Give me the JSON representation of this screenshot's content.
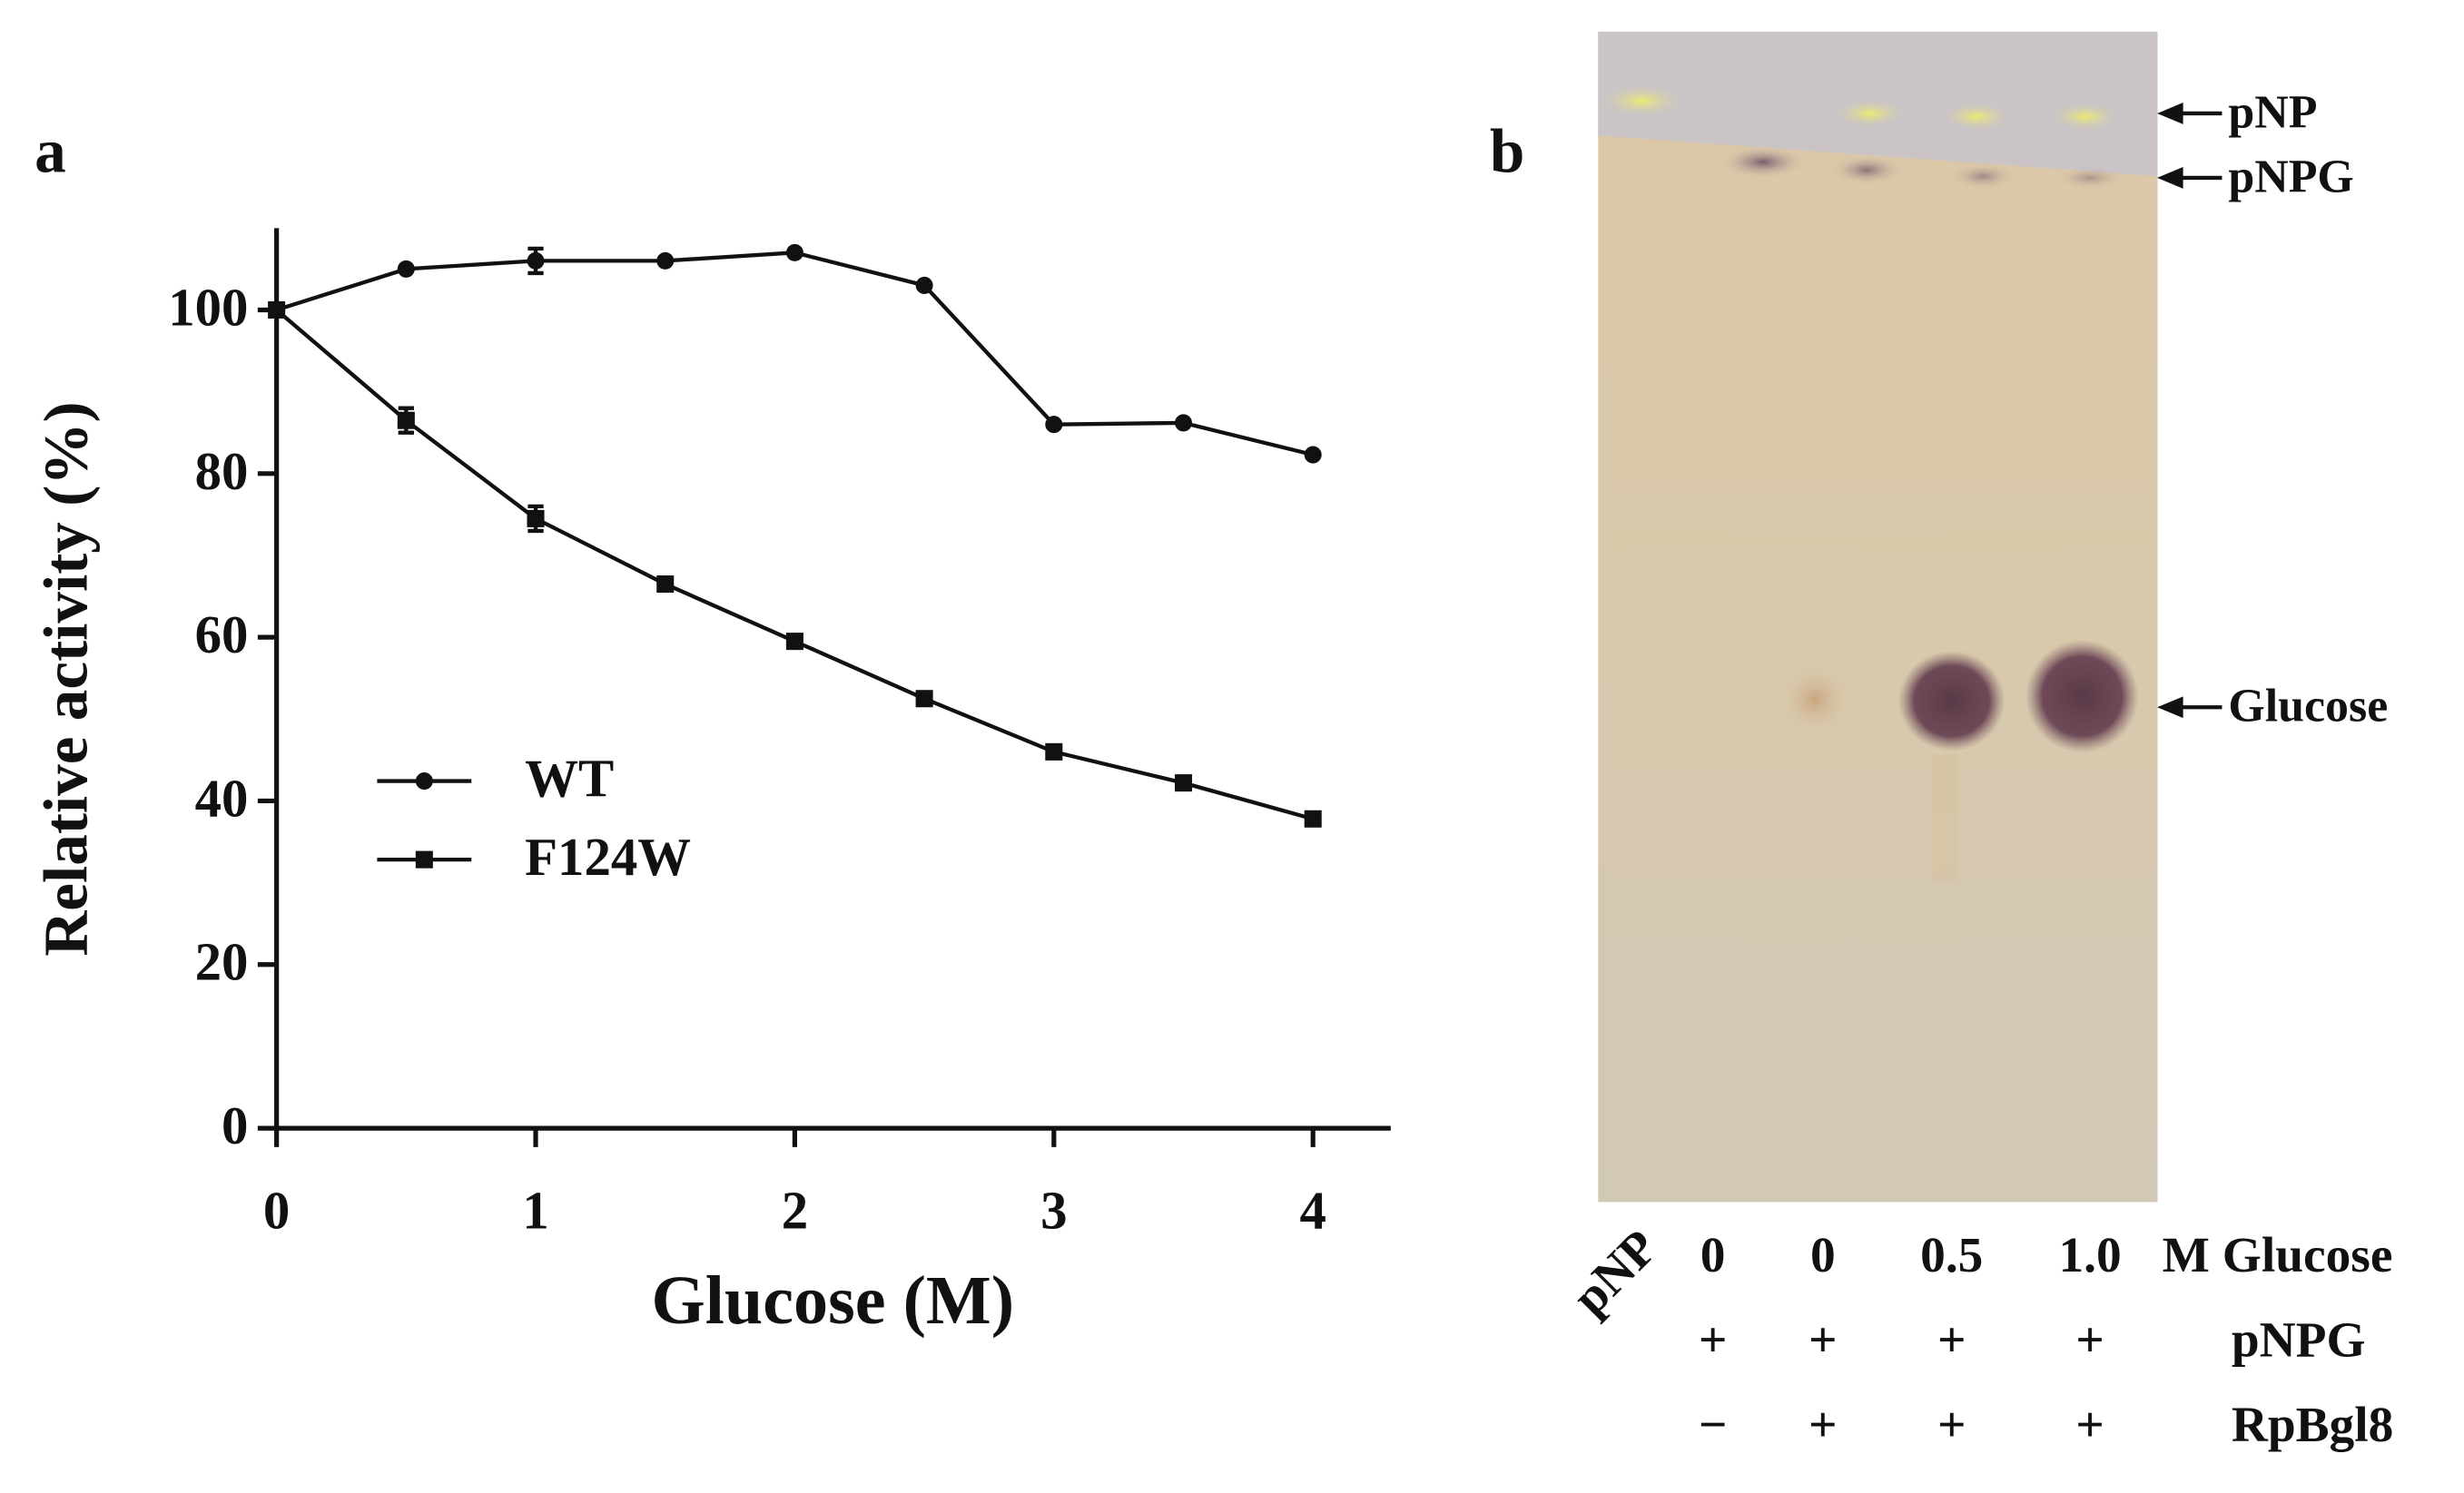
{
  "chart_data": {
    "type": "line",
    "panel_label": "a",
    "x_label": "Glucose (M)",
    "y_label": "Relative activity (%)",
    "x": [
      0,
      0.5,
      1,
      1.5,
      2,
      2.5,
      3,
      3.5,
      4
    ],
    "series": [
      {
        "name": "WT",
        "color": "#111111",
        "marker": "circle",
        "values": [
          100,
          105,
          106,
          106,
          107,
          103,
          86,
          86.2,
          82.3
        ],
        "errors": [
          null,
          null,
          1.5,
          null,
          null,
          null,
          null,
          null,
          null
        ]
      },
      {
        "name": "F124W",
        "color": "#111111",
        "marker": "square",
        "values": [
          100,
          86.5,
          74.5,
          66.5,
          59.5,
          52.5,
          46,
          42.2,
          37.8
        ],
        "errors": [
          null,
          1.5,
          1.5,
          null,
          null,
          null,
          null,
          null,
          null
        ]
      }
    ],
    "xlim": [
      0,
      4.3
    ],
    "xticks": [
      0,
      1,
      2,
      3,
      4
    ],
    "ylim": [
      0,
      110
    ],
    "yticks": [
      0,
      20,
      40,
      60,
      80,
      100
    ]
  },
  "panel_b": {
    "label": "b",
    "bands": [
      "pNP",
      "pNPG",
      "Glucose"
    ],
    "first_lane": "pNP",
    "rows": [
      {
        "cells": [
          "0",
          "0",
          "0.5",
          "1.0"
        ],
        "name": "M Glucose"
      },
      {
        "cells": [
          "+",
          "+",
          "+",
          "+"
        ],
        "name": "pNPG"
      },
      {
        "cells": [
          "−",
          "+",
          "+",
          "+"
        ],
        "name": "RpBgl8"
      }
    ]
  }
}
